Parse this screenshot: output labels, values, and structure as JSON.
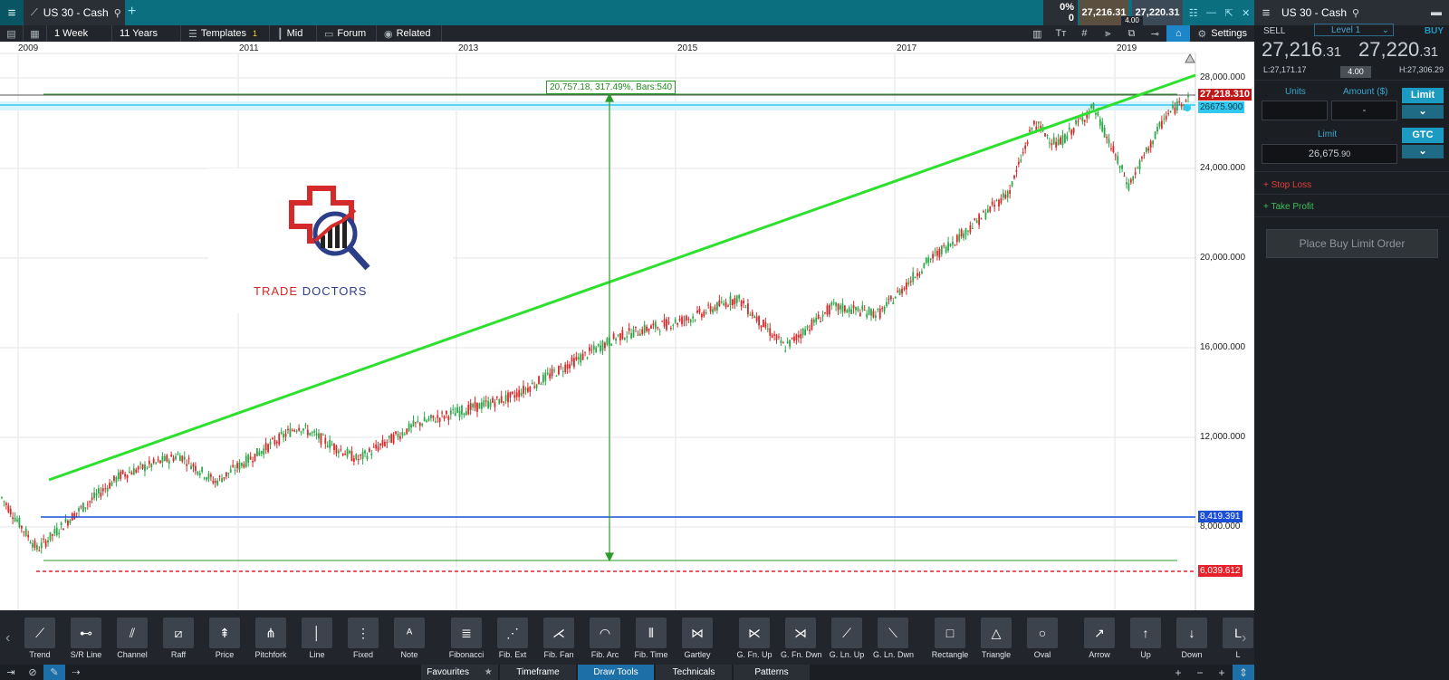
{
  "topbar": {
    "symbol_tab": "US 30 - Cash",
    "change_pct": "0%",
    "change_val": "0",
    "sell_quote": "27,216.31",
    "buy_quote": "27,220.31",
    "spread": "4.00"
  },
  "toolbar": {
    "interval": "1 Week",
    "range": "11 Years",
    "templates": "Templates",
    "templates_badge": "1",
    "price_type": "Mid",
    "forum": "Forum",
    "related": "Related",
    "settings": "Settings"
  },
  "chart": {
    "x_labels": [
      "2009",
      "2011",
      "2013",
      "2015",
      "2017",
      "2019"
    ],
    "y_labels": [
      "28,000.000",
      "24,000.000",
      "20,000.000",
      "16,000.000",
      "12,000.000",
      "8,000.000"
    ],
    "current_price_tag": "27,218.310",
    "limit_tag": "26675.900",
    "support_tag": "8,419.391",
    "low_tag": "6,039.612",
    "measure_annotation": "20,757.18, 317.49%, Bars:540",
    "colors": {
      "up_candle": "#2ea84a",
      "down_candle": "#d82a2a",
      "trendline": "#2ee02e",
      "support": "#1a4fd6",
      "low": "#e8202a",
      "limit_band": "#33c8ef"
    }
  },
  "chart_data": {
    "type": "candlestick",
    "x": [
      "2009",
      "2010",
      "2011",
      "2012",
      "2013",
      "2014",
      "2015",
      "2016",
      "2017",
      "2018",
      "2019"
    ],
    "y": [
      8600,
      10600,
      12400,
      12800,
      15000,
      17000,
      17600,
      17700,
      20000,
      25000,
      27218.31
    ],
    "ylim": [
      6000,
      29000
    ],
    "xlabel": "",
    "ylabel": "",
    "reference_lines": {
      "current": 27218.31,
      "limit": 26675.9,
      "support": 8419.391,
      "low": 6039.612
    },
    "measurement": {
      "change": 20757.18,
      "percent": 317.49,
      "bars": 540
    }
  },
  "logo": {
    "word1": "TRADE",
    "word2": "DOCTORS"
  },
  "drawing_tools": [
    {
      "label": "Trend",
      "icon": "trend-line-icon"
    },
    {
      "label": "S/R Line",
      "icon": "sr-line-icon"
    },
    {
      "label": "Channel",
      "icon": "channel-icon"
    },
    {
      "label": "Raff",
      "icon": "raff-icon"
    },
    {
      "label": "Price",
      "icon": "price-icon"
    },
    {
      "label": "Pitchfork",
      "icon": "pitchfork-icon"
    },
    {
      "label": "Line",
      "icon": "line-icon"
    },
    {
      "label": "Fixed",
      "icon": "fixed-icon"
    },
    {
      "label": "Note",
      "icon": "note-icon"
    },
    {
      "label": "Fibonacci",
      "icon": "fibonacci-icon"
    },
    {
      "label": "Fib. Ext",
      "icon": "fib-ext-icon"
    },
    {
      "label": "Fib. Fan",
      "icon": "fib-fan-icon"
    },
    {
      "label": "Fib. Arc",
      "icon": "fib-arc-icon"
    },
    {
      "label": "Fib. Time",
      "icon": "fib-time-icon"
    },
    {
      "label": "Gartley",
      "icon": "gartley-icon"
    },
    {
      "label": "G. Fn. Up",
      "icon": "gann-fan-up-icon"
    },
    {
      "label": "G. Fn. Dwn",
      "icon": "gann-fan-down-icon"
    },
    {
      "label": "G. Ln. Up",
      "icon": "gann-line-up-icon"
    },
    {
      "label": "G. Ln. Dwn",
      "icon": "gann-line-down-icon"
    },
    {
      "label": "Rectangle",
      "icon": "rectangle-icon"
    },
    {
      "label": "Triangle",
      "icon": "triangle-icon"
    },
    {
      "label": "Oval",
      "icon": "oval-icon"
    },
    {
      "label": "Arrow",
      "icon": "arrow-icon"
    },
    {
      "label": "Up",
      "icon": "up-arrow-icon"
    },
    {
      "label": "Down",
      "icon": "down-arrow-icon"
    },
    {
      "label": "L",
      "icon": "label-icon"
    }
  ],
  "bottom_tabs": {
    "favourites": "Favourites",
    "timeframe": "Timeframe",
    "draw_tools": "Draw Tools",
    "technicals": "Technicals",
    "patterns": "Patterns"
  },
  "panel": {
    "symbol": "US 30 - Cash",
    "sell_label": "SELL",
    "buy_label": "BUY",
    "level": "Level 1",
    "sell_price_main": "27,216",
    "sell_price_frac": ".31",
    "buy_price_main": "27,220",
    "buy_price_frac": ".31",
    "low": "L:27,171.17",
    "high": "H:27,306.29",
    "spread": "4.00",
    "units_label": "Units",
    "amount_label": "Amount ($)",
    "amount_value": "-",
    "order_type": "Limit",
    "limit_label": "Limit",
    "limit_value": "26,675",
    "limit_frac": ".90",
    "tif": "GTC",
    "stop_loss": "+ Stop Loss",
    "take_profit": "+ Take Profit",
    "place_order": "Place Buy Limit Order"
  }
}
